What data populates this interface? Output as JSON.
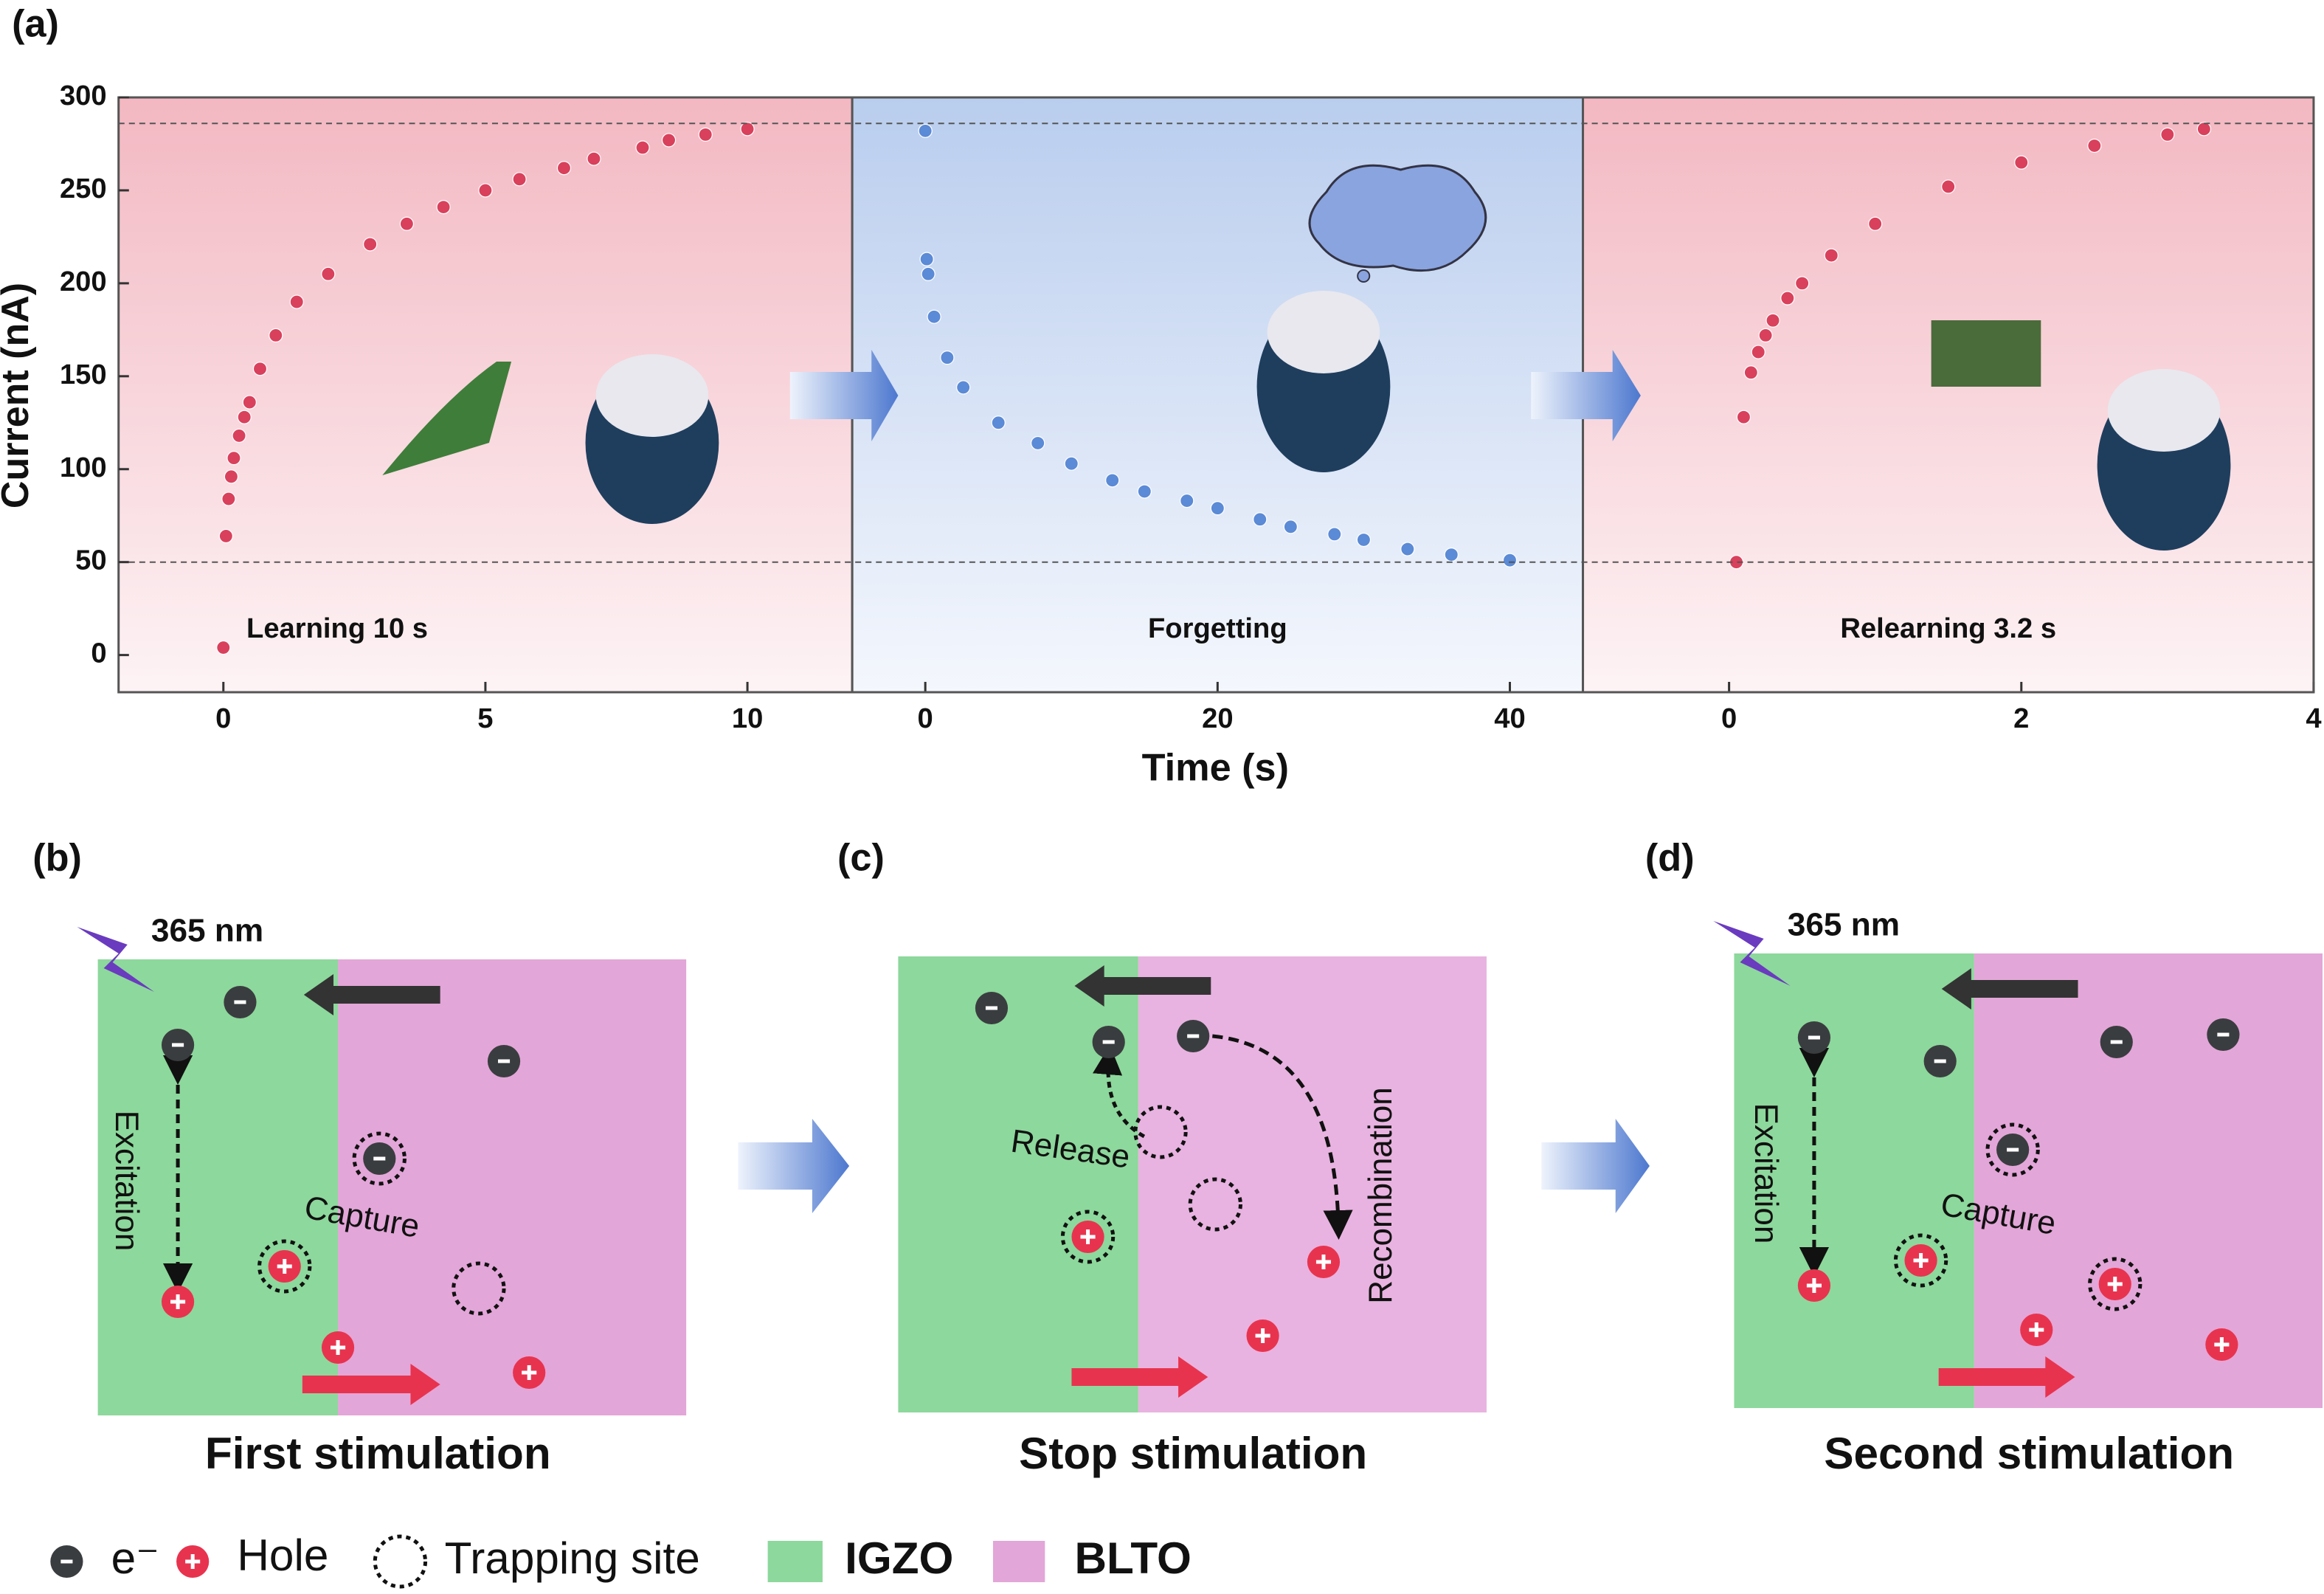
{
  "chart_data": {
    "type": "scatter",
    "panel_label": "(a)",
    "ylabel": "Current (nA)",
    "xlabel": "Time (s)",
    "ylim": [
      -20,
      300
    ],
    "yticks": [
      0,
      50,
      100,
      150,
      200,
      250,
      300
    ],
    "reference_lines": [
      286,
      50
    ],
    "panels": [
      {
        "annotation": "Learning 10 s",
        "xlim": [
          -2,
          12
        ],
        "xticks": [
          0,
          5,
          10
        ],
        "background": "#f3b8c2",
        "series": [
          {
            "color": "#d9405c",
            "x": [
              0,
              0.05,
              0.1,
              0.15,
              0.2,
              0.3,
              0.4,
              0.5,
              0.7,
              1,
              1.4,
              2,
              2.8,
              3.5,
              4.2,
              5,
              5.65,
              6.5,
              7.07,
              8,
              8.5,
              9.2,
              10
            ],
            "values": [
              4,
              64,
              84,
              96,
              106,
              118,
              128,
              136,
              154,
              172,
              190,
              205,
              221,
              232,
              241,
              250,
              256,
              262,
              267,
              273,
              277,
              280,
              283
            ]
          }
        ]
      },
      {
        "annotation": "Forgetting",
        "xlim": [
          -5,
          45
        ],
        "xticks": [
          0,
          20,
          40
        ],
        "background": "#b9cdee",
        "series": [
          {
            "color": "#5b8ad6",
            "x": [
              0,
              0.1,
              0.2,
              0.6,
              1.5,
              2.6,
              5,
              7.7,
              10,
              12.8,
              15,
              17.9,
              20,
              22.9,
              25,
              28,
              30,
              33,
              36,
              40
            ],
            "values": [
              282,
              213,
              205,
              182,
              160,
              144,
              125,
              114,
              103,
              94,
              88,
              83,
              79,
              73,
              69,
              65,
              62,
              57,
              54,
              51
            ]
          }
        ]
      },
      {
        "annotation": "Relearning 3.2 s",
        "xlim": [
          -1,
          4
        ],
        "xticks": [
          0,
          2,
          4
        ],
        "background": "#f3b8c2",
        "series": [
          {
            "color": "#d9405c",
            "x": [
              0.05,
              0.1,
              0.15,
              0.2,
              0.25,
              0.3,
              0.4,
              0.5,
              0.7,
              1,
              1.5,
              2,
              2.5,
              3,
              3.25
            ],
            "values": [
              50,
              128,
              152,
              163,
              172,
              180,
              192,
              200,
              215,
              232,
              252,
              265,
              274,
              280,
              283
            ]
          }
        ]
      }
    ]
  },
  "diagrams": [
    {
      "label": "(b)",
      "caption": "First stimulation",
      "light": "365 nm",
      "annotations": [
        "Excitation",
        "Capture"
      ]
    },
    {
      "label": "(c)",
      "caption": "Stop stimulation",
      "annotations": [
        "Release",
        "Recombination"
      ]
    },
    {
      "label": "(d)",
      "caption": "Second stimulation",
      "light": "365 nm",
      "annotations": [
        "Excitation",
        "Capture"
      ]
    }
  ],
  "legend": [
    "e⁻",
    "Hole",
    "Trapping site",
    "IGZO",
    "BLTO"
  ]
}
